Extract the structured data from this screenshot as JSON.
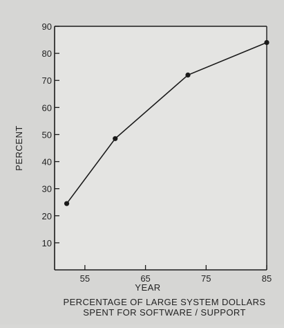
{
  "chart_data": {
    "type": "line",
    "title": "",
    "xlabel": "YEAR",
    "ylabel": "PERCENT",
    "caption": [
      "PERCENTAGE OF LARGE SYSTEM DOLLARS",
      "SPENT FOR SOFTWARE / SUPPORT"
    ],
    "xlim": [
      50,
      85
    ],
    "ylim": [
      0,
      90
    ],
    "x_ticks": [
      55,
      65,
      75,
      85
    ],
    "y_ticks": [
      10,
      20,
      30,
      40,
      50,
      60,
      70,
      80,
      90
    ],
    "grid": false,
    "series": [
      {
        "x": [
          52,
          60,
          72,
          85
        ],
        "y": [
          24.5,
          48.5,
          72,
          84
        ]
      }
    ],
    "colors": {
      "line": "#1a1a1a",
      "marker": "#1a1a1a",
      "plot_background": "#e4e4e2",
      "page_background": "#d6d6d4"
    }
  }
}
